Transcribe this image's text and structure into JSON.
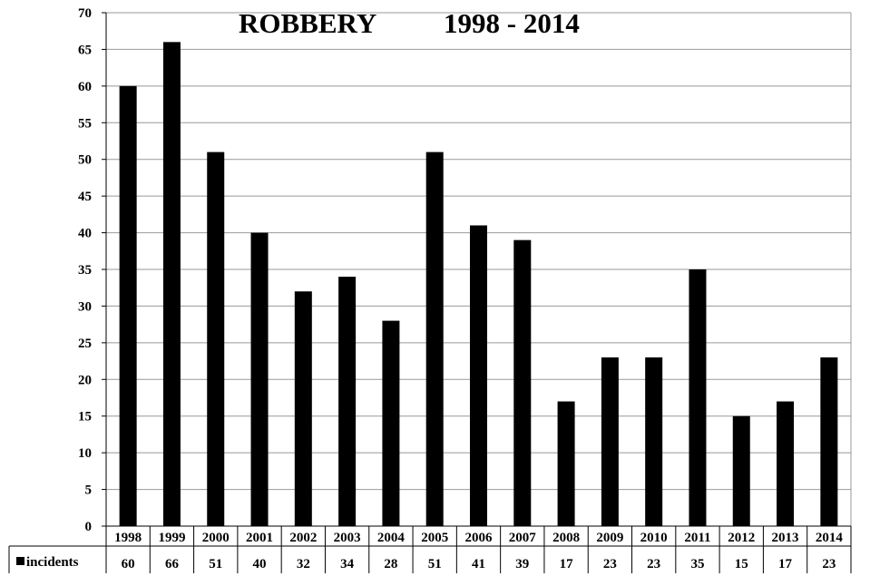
{
  "chart_data": {
    "type": "bar",
    "title": "ROBBERY",
    "subtitle": "1998 - 2014",
    "categories": [
      "1998",
      "1999",
      "2000",
      "2001",
      "2002",
      "2003",
      "2004",
      "2005",
      "2006",
      "2007",
      "2008",
      "2009",
      "2010",
      "2011",
      "2012",
      "2013",
      "2014"
    ],
    "series": [
      {
        "name": "incidents",
        "values": [
          60,
          66,
          51,
          40,
          32,
          34,
          28,
          51,
          41,
          39,
          17,
          23,
          23,
          35,
          15,
          17,
          23
        ]
      }
    ],
    "ylim": [
      0,
      70
    ],
    "yticks": [
      0,
      5,
      10,
      15,
      20,
      25,
      30,
      35,
      40,
      45,
      50,
      55,
      60,
      65,
      70
    ],
    "grid": true,
    "legend": "data-table-left",
    "bar_color": "#000000",
    "grid_color": "#999999"
  }
}
